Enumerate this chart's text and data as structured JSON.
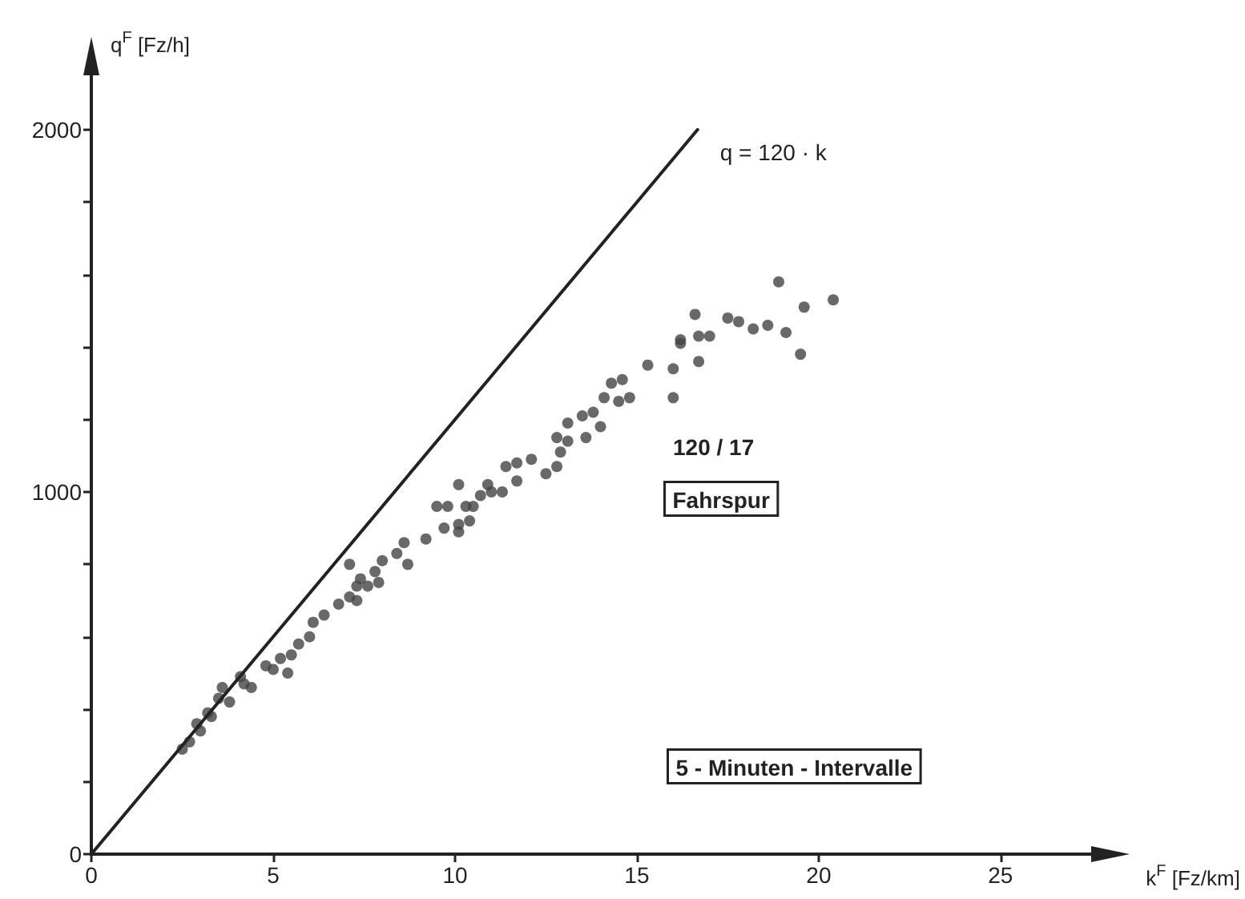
{
  "chart_data": {
    "type": "scatter",
    "xlabel": "k$^{F}$ [Fz/km]",
    "ylabel": "q$^{F}$ [Fz/h]",
    "xlim": [
      0,
      27.5
    ],
    "ylim": [
      0,
      2150
    ],
    "xticks": [
      0,
      5,
      10,
      15,
      20,
      25
    ],
    "yticks": [
      0,
      {
        "value": 200,
        "label": null
      },
      {
        "value": 400,
        "label": null
      },
      {
        "value": 600,
        "label": null
      },
      {
        "value": 800,
        "label": null
      },
      1000,
      {
        "value": 1200,
        "label": null
      },
      {
        "value": 1400,
        "label": null
      },
      {
        "value": 1600,
        "label": null
      },
      {
        "value": 1800,
        "label": null
      },
      2000
    ],
    "grid": false,
    "legend": false,
    "marker": "circle",
    "annotations": [
      "120 / 17",
      "Fahrspur",
      "5 - Minuten - Intervalle"
    ],
    "series": [
      {
        "type": "line",
        "name": "q = 120 · k",
        "color": "#222222",
        "line_style": "solid",
        "marker": "none",
        "x": [
          0,
          16.67
        ],
        "values": [
          0,
          2000
        ]
      },
      {
        "color": "#444444",
        "x": [
          18.9,
          20.4,
          19.6,
          16.6,
          17.5,
          17.8,
          18.6,
          18.2,
          19.1,
          16.2,
          16.2,
          16.7,
          17.0,
          15.3,
          16.0,
          16.7,
          19.5,
          16.0,
          14.6,
          14.3,
          14.8,
          14.1,
          14.5,
          13.8,
          13.5,
          14.0,
          13.1,
          12.8,
          13.6,
          13.1,
          12.9,
          12.1,
          11.7,
          11.4,
          12.8,
          12.5,
          11.7,
          10.1,
          10.9,
          11.0,
          11.3,
          10.7,
          10.5,
          10.3,
          9.8,
          9.5,
          10.1,
          10.4,
          9.7,
          10.1,
          9.2,
          8.6,
          8.4,
          8.7,
          8.0,
          7.8,
          7.4,
          7.9,
          7.3,
          7.6,
          7.1,
          7.3,
          7.1,
          6.8,
          6.4,
          6.1,
          6.0,
          5.7,
          5.5,
          5.2,
          4.8,
          4.4,
          4.2,
          4.1,
          3.8,
          3.6,
          3.5,
          3.2,
          2.9,
          2.7,
          2.5,
          3.0,
          3.3,
          5.4,
          5.0
        ],
        "values": [
          1580,
          1530,
          1510,
          1490,
          1480,
          1470,
          1460,
          1450,
          1440,
          1420,
          1410,
          1430,
          1430,
          1350,
          1340,
          1360,
          1380,
          1260,
          1310,
          1300,
          1260,
          1260,
          1250,
          1220,
          1210,
          1180,
          1190,
          1150,
          1150,
          1140,
          1110,
          1090,
          1080,
          1070,
          1070,
          1050,
          1030,
          1020,
          1020,
          1000,
          1000,
          990,
          960,
          960,
          960,
          960,
          910,
          920,
          900,
          890,
          870,
          860,
          830,
          800,
          810,
          780,
          760,
          750,
          740,
          740,
          800,
          700,
          710,
          690,
          660,
          640,
          600,
          580,
          550,
          540,
          520,
          460,
          470,
          490,
          420,
          460,
          430,
          390,
          360,
          310,
          290,
          340,
          380,
          500,
          510
        ]
      }
    ]
  }
}
